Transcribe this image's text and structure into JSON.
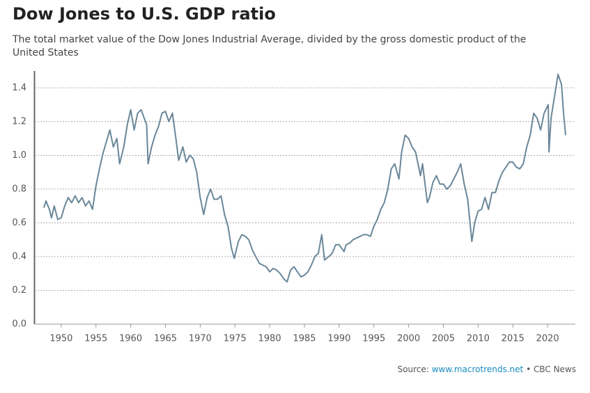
{
  "chart_data": {
    "type": "line",
    "title": "Dow Jones to U.S. GDP ratio",
    "subtitle": [
      "The total market value of the Dow Jones Industrial Average, divided by the gross domestic product of the",
      "United States"
    ],
    "source": {
      "label": "Source:",
      "link": "www.macrotrends.net",
      "credit": "• CBC News"
    },
    "color": "#6a8799",
    "grid": true,
    "xlim": [
      1946.2,
      2024
    ],
    "ylim": [
      0,
      1.5
    ],
    "xticks": [
      1950,
      1955,
      1960,
      1965,
      1970,
      1975,
      1980,
      1985,
      1990,
      1995,
      2000,
      2005,
      2010,
      2015,
      2020
    ],
    "yticks": [
      {
        "value": 0,
        "label": "0.0"
      },
      0.2,
      0.4,
      0.6,
      0.8,
      {
        "value": 1,
        "label": "1.0"
      },
      1.2,
      1.4
    ],
    "x": [
      1947.5,
      1947.8,
      1948.3,
      1948.6,
      1949.0,
      1949.5,
      1950.0,
      1950.5,
      1951.0,
      1951.5,
      1952.0,
      1952.5,
      1953.0,
      1953.5,
      1954.0,
      1954.5,
      1955.0,
      1955.5,
      1956.0,
      1956.5,
      1957.0,
      1957.5,
      1958.0,
      1958.4,
      1959.0,
      1959.5,
      1960.0,
      1960.5,
      1961.0,
      1961.5,
      1962.3,
      1962.5,
      1963.0,
      1963.5,
      1964.0,
      1964.5,
      1965.0,
      1965.5,
      1966.0,
      1966.5,
      1966.9,
      1967.5,
      1968.0,
      1968.5,
      1969.0,
      1969.5,
      1970.0,
      1970.5,
      1971.0,
      1971.5,
      1972.0,
      1972.5,
      1973.0,
      1973.5,
      1974.0,
      1974.5,
      1974.9,
      1975.5,
      1976.0,
      1976.5,
      1977.0,
      1977.5,
      1978.0,
      1978.5,
      1979.0,
      1979.5,
      1980.0,
      1980.5,
      1981.0,
      1981.5,
      1982.0,
      1982.5,
      1983.0,
      1983.5,
      1984.0,
      1984.5,
      1985.0,
      1985.5,
      1986.0,
      1986.5,
      1987.0,
      1987.5,
      1987.9,
      1988.5,
      1989.0,
      1989.5,
      1990.0,
      1990.7,
      1991.0,
      1991.5,
      1992.0,
      1992.5,
      1993.0,
      1993.5,
      1994.0,
      1994.5,
      1995.0,
      1995.5,
      1996.0,
      1996.5,
      1997.0,
      1997.5,
      1998.0,
      1998.6,
      1999.0,
      1999.5,
      2000.0,
      2000.5,
      2001.0,
      2001.7,
      2002.0,
      2002.7,
      2003.0,
      2003.5,
      2004.0,
      2004.5,
      2005.0,
      2005.5,
      2006.0,
      2006.5,
      2007.0,
      2007.5,
      2008.0,
      2008.5,
      2009.1,
      2009.5,
      2010.0,
      2010.5,
      2011.0,
      2011.5,
      2012.0,
      2012.5,
      2013.0,
      2013.5,
      2014.0,
      2014.5,
      2015.0,
      2015.5,
      2016.0,
      2016.5,
      2017.0,
      2017.5,
      2018.0,
      2018.5,
      2019.0,
      2019.5,
      2020.1,
      2020.2,
      2020.5,
      2021.0,
      2021.5,
      2022.0,
      2022.3,
      2022.6
    ],
    "values": [
      0.69,
      0.73,
      0.68,
      0.63,
      0.7,
      0.62,
      0.63,
      0.7,
      0.75,
      0.72,
      0.76,
      0.72,
      0.75,
      0.7,
      0.73,
      0.68,
      0.82,
      0.92,
      1.01,
      1.08,
      1.15,
      1.05,
      1.1,
      0.95,
      1.05,
      1.18,
      1.27,
      1.15,
      1.25,
      1.27,
      1.18,
      0.95,
      1.05,
      1.12,
      1.17,
      1.25,
      1.26,
      1.2,
      1.25,
      1.1,
      0.97,
      1.05,
      0.96,
      1.0,
      0.98,
      0.9,
      0.75,
      0.65,
      0.75,
      0.8,
      0.74,
      0.74,
      0.76,
      0.65,
      0.58,
      0.45,
      0.39,
      0.49,
      0.53,
      0.52,
      0.5,
      0.44,
      0.4,
      0.36,
      0.35,
      0.34,
      0.31,
      0.33,
      0.32,
      0.3,
      0.27,
      0.25,
      0.32,
      0.34,
      0.31,
      0.28,
      0.29,
      0.31,
      0.35,
      0.4,
      0.42,
      0.53,
      0.38,
      0.4,
      0.42,
      0.47,
      0.47,
      0.43,
      0.47,
      0.48,
      0.5,
      0.51,
      0.52,
      0.53,
      0.53,
      0.52,
      0.58,
      0.62,
      0.68,
      0.72,
      0.8,
      0.92,
      0.95,
      0.86,
      1.02,
      1.12,
      1.1,
      1.05,
      1.02,
      0.88,
      0.95,
      0.72,
      0.75,
      0.84,
      0.88,
      0.83,
      0.83,
      0.8,
      0.82,
      0.86,
      0.9,
      0.95,
      0.83,
      0.74,
      0.49,
      0.6,
      0.67,
      0.68,
      0.75,
      0.68,
      0.78,
      0.78,
      0.85,
      0.9,
      0.93,
      0.96,
      0.96,
      0.93,
      0.92,
      0.95,
      1.05,
      1.12,
      1.25,
      1.22,
      1.15,
      1.25,
      1.3,
      1.02,
      1.22,
      1.35,
      1.48,
      1.42,
      1.25,
      1.12
    ]
  }
}
